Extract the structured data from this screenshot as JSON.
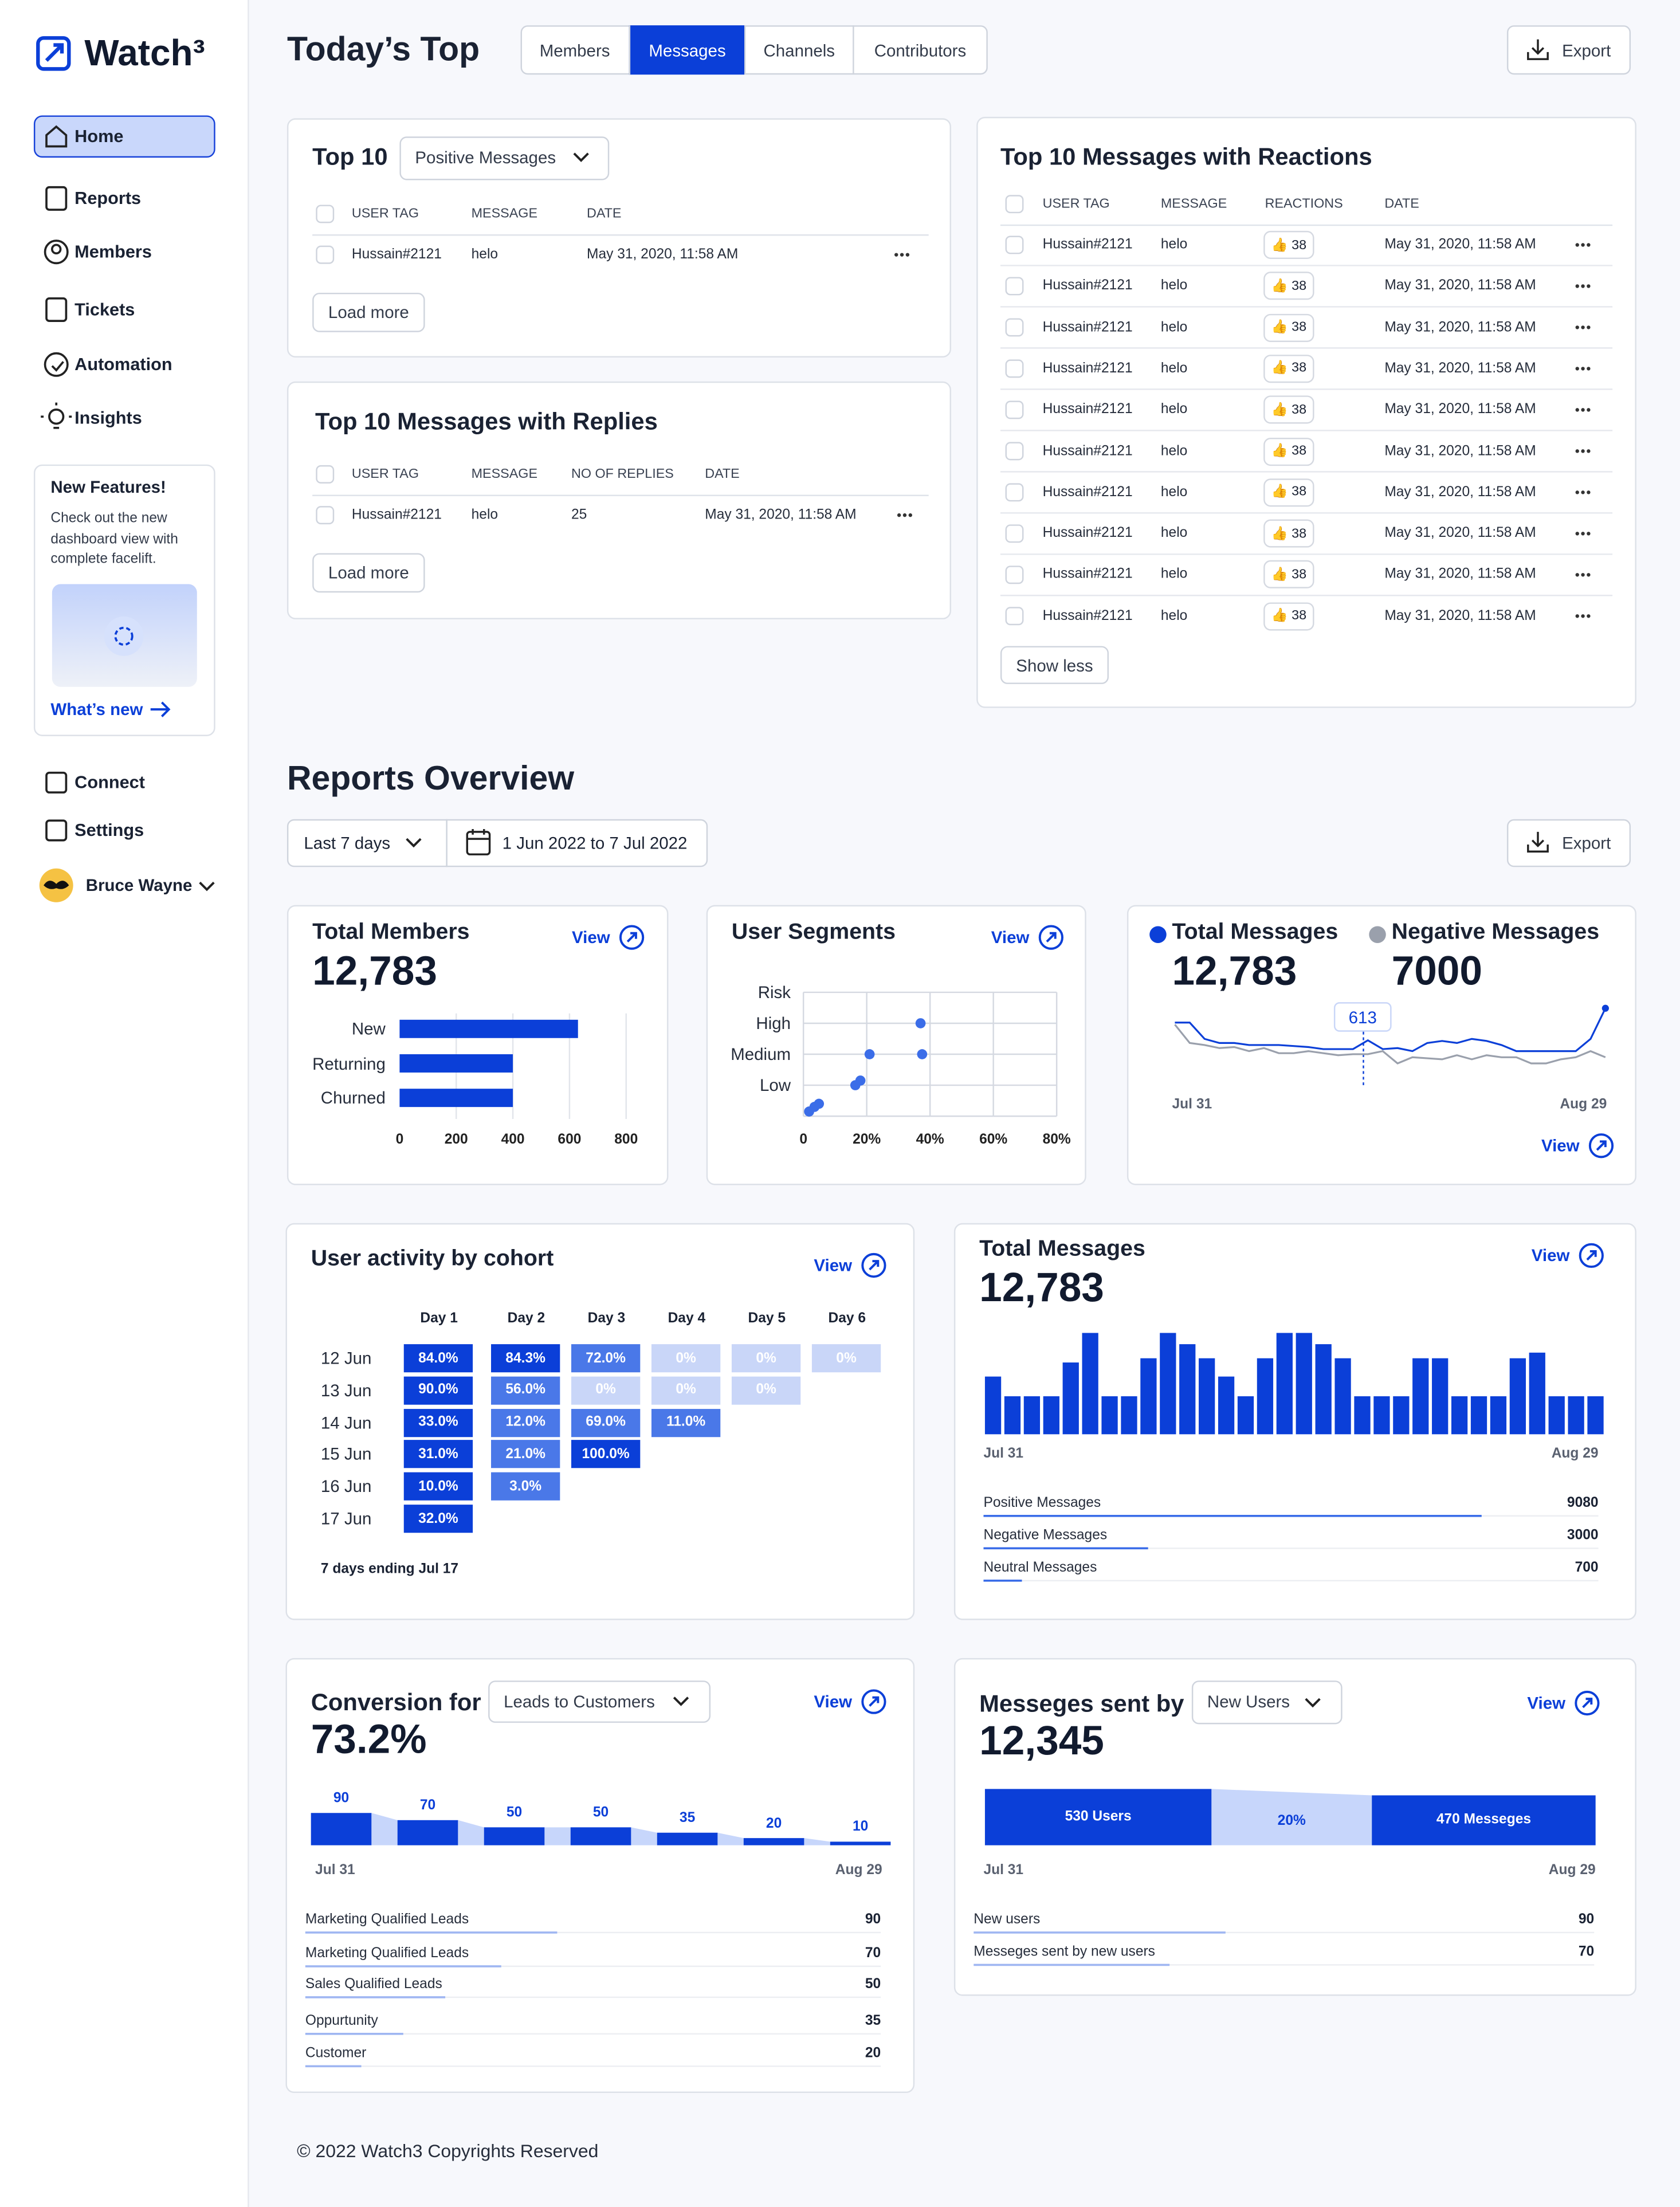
{
  "sidebar": {
    "brand": "Watch³",
    "nav": [
      "Home",
      "Reports",
      "Members",
      "Tickets",
      "Automation",
      "Insights"
    ],
    "promo": {
      "title": "New Features!",
      "text": "Check out the new dashboard view with complete facelift.",
      "link": "What’s new"
    },
    "nav2": [
      "Connect",
      "Settings"
    ],
    "user": "Bruce Wayne"
  },
  "header": {
    "title": "Today’s Top",
    "tabs": [
      "Members",
      "Messages",
      "Channels",
      "Contributors"
    ],
    "export": "Export"
  },
  "top10": {
    "title": "Top 10",
    "filter": "Positive Messages",
    "columns": [
      "USER TAG",
      "MESSAGE",
      "DATE"
    ],
    "rows": [
      [
        "Hussain#2121",
        "helo",
        "May 31, 2020, 11:58 AM"
      ]
    ],
    "button": "Load more"
  },
  "replies": {
    "title": "Top 10 Messages with Replies",
    "columns": [
      "USER TAG",
      "MESSAGE",
      "NO OF REPLIES",
      "DATE"
    ],
    "rows": [
      [
        "Hussain#2121",
        "helo",
        "25",
        "May 31, 2020, 11:58 AM"
      ]
    ],
    "button": "Load more"
  },
  "reactions": {
    "title": "Top 10 Messages with Reactions",
    "columns": [
      "USER TAG",
      "MESSAGE",
      "REACTIONS",
      "DATE"
    ],
    "rows": [
      [
        "Hussain#2121",
        "helo",
        "👍 38",
        "May 31, 2020, 11:58 AM"
      ],
      [
        "Hussain#2121",
        "helo",
        "👍 38",
        "May 31, 2020, 11:58 AM"
      ],
      [
        "Hussain#2121",
        "helo",
        "👍 38",
        "May 31, 2020, 11:58 AM"
      ],
      [
        "Hussain#2121",
        "helo",
        "👍 38",
        "May 31, 2020, 11:58 AM"
      ],
      [
        "Hussain#2121",
        "helo",
        "👍 38",
        "May 31, 2020, 11:58 AM"
      ],
      [
        "Hussain#2121",
        "helo",
        "👍 38",
        "May 31, 2020, 11:58 AM"
      ],
      [
        "Hussain#2121",
        "helo",
        "👍 38",
        "May 31, 2020, 11:58 AM"
      ],
      [
        "Hussain#2121",
        "helo",
        "👍 38",
        "May 31, 2020, 11:58 AM"
      ],
      [
        "Hussain#2121",
        "helo",
        "👍 38",
        "May 31, 2020, 11:58 AM"
      ],
      [
        "Hussain#2121",
        "helo",
        "👍 38",
        "May 31, 2020, 11:58 AM"
      ]
    ],
    "button": "Show less"
  },
  "reports": {
    "title": "Reports Overview",
    "range": "Last 7 days",
    "dates": "1 Jun 2022 to 7 Jul 2022",
    "export": "Export"
  },
  "total_members": {
    "title": "Total Members",
    "value": "12,783",
    "link": "View",
    "chart": {
      "type": "bar",
      "categories": [
        "New",
        "Returning",
        "Churned"
      ],
      "values": [
        630,
        400,
        400
      ],
      "xlim": [
        0,
        800
      ],
      "xticks": [
        0,
        200,
        400,
        600,
        800
      ],
      "color": "#0b3fd8",
      "grid": true
    }
  },
  "user_segments": {
    "title": "User Segments",
    "link": "View",
    "chart": {
      "type": "scatter",
      "x": [
        1.8,
        3.5,
        4.9,
        16.4,
        18,
        20.9,
        37,
        37.5
      ],
      "values": [
        0.15,
        0.3,
        0.4,
        1,
        1.15,
        2,
        3,
        2
      ],
      "xlim": [
        0,
        80
      ],
      "xticks": [
        0,
        {
          "value": 20,
          "label": "20%"
        },
        {
          "value": 40,
          "label": "40%"
        },
        {
          "value": 60,
          "label": "60%"
        },
        {
          "value": 80,
          "label": "80%"
        }
      ],
      "ylim": [
        0,
        4
      ],
      "yticks": [
        {
          "value": 1,
          "label": "Low"
        },
        {
          "value": 2,
          "label": "Medium"
        },
        {
          "value": 3,
          "label": "High"
        },
        {
          "value": 4,
          "label": "Risk"
        }
      ],
      "color": "#3b6de8",
      "grid": true
    }
  },
  "messages": {
    "totals": [
      "12,783",
      "7000"
    ],
    "annotation": "613",
    "link": "View",
    "chart": {
      "type": "line",
      "categories": [
        "Jul 31",
        null,
        null,
        null,
        null,
        null,
        null,
        null,
        null,
        null,
        null,
        null,
        null,
        null,
        null,
        null,
        null,
        null,
        null,
        null,
        null,
        null,
        null,
        null,
        null,
        null,
        null,
        null,
        null,
        "Aug 29"
      ],
      "series": [
        {
          "name": "Total Messages",
          "color": "#0b3fd8",
          "values": [
            700,
            700,
            620,
            600,
            600,
            590,
            590,
            590,
            585,
            580,
            570,
            570,
            570,
            613,
            570,
            575,
            560,
            600,
            610,
            600,
            620,
            610,
            590,
            560,
            560,
            560,
            560,
            560,
            620,
            770
          ]
        },
        {
          "name": "Negative Messages",
          "color": "#9aa0ac",
          "values": [
            690,
            600,
            590,
            575,
            580,
            560,
            575,
            550,
            550,
            560,
            550,
            540,
            545,
            545,
            560,
            500,
            530,
            525,
            520,
            540,
            520,
            540,
            530,
            530,
            500,
            500,
            520,
            530,
            560,
            530
          ]
        }
      ],
      "ylim": [
        400,
        800
      ]
    }
  },
  "cohort": {
    "title": "User activity by cohort",
    "link": "View",
    "columns": [
      "Day 1",
      "Day 2",
      "Day 3",
      "Day 4",
      "Day 5",
      "Day 6"
    ],
    "rows": [
      {
        "label": "12 Jun",
        "values": [
          "84.0%",
          "84.3%",
          "72.0%",
          "0%",
          "0%",
          "0%"
        ]
      },
      {
        "label": "13 Jun",
        "values": [
          "90.0%",
          "56.0%",
          "0%",
          "0%",
          "0%"
        ]
      },
      {
        "label": "14 Jun",
        "values": [
          "33.0%",
          "12.0%",
          "69.0%",
          "11.0%"
        ]
      },
      {
        "label": "15 Jun",
        "values": [
          "31.0%",
          "21.0%",
          "100.0%"
        ]
      },
      {
        "label": "16 Jun",
        "values": [
          "10.0%",
          "3.0%"
        ]
      },
      {
        "label": "17 Jun",
        "values": [
          "32.0%"
        ]
      }
    ],
    "footnote": "7 days ending Jul 17"
  },
  "total_messages": {
    "title": "Total Messages",
    "value": "12,783",
    "link": "View",
    "chart": {
      "type": "bar",
      "categories": [
        "Jul 31",
        null,
        null,
        null,
        null,
        null,
        null,
        null,
        null,
        null,
        null,
        null,
        null,
        null,
        null,
        null,
        null,
        null,
        null,
        null,
        null,
        null,
        null,
        null,
        null,
        null,
        null,
        null,
        null,
        null,
        null,
        "Aug 29"
      ],
      "values": [
        41,
        27,
        27,
        27,
        51,
        72,
        27,
        27,
        54,
        72,
        64,
        54,
        41,
        27,
        54,
        72,
        72,
        64,
        54,
        27,
        27,
        27,
        54,
        54,
        27,
        27,
        27,
        54,
        58,
        27,
        27,
        27
      ],
      "ylim": [
        0,
        80
      ],
      "color": "#0b3fd8"
    },
    "breakdown": {
      "categories": [
        "Positive Messages",
        "Negative Messages",
        "Neutral Messages"
      ],
      "values": [
        9080,
        3000,
        700
      ],
      "color": "#3b6de8"
    }
  },
  "conversion": {
    "title": "Conversion for",
    "filter": "Leads to Customers",
    "value": "73.2%",
    "link": "View",
    "chart": {
      "type": "bar",
      "categories": [
        "Jul 31",
        null,
        null,
        null,
        null,
        null,
        "Aug 29"
      ],
      "values": [
        90,
        70,
        50,
        50,
        35,
        20,
        10
      ],
      "ylim": [
        0,
        100
      ],
      "color": "#0b3fd8"
    },
    "breakdown": {
      "categories": [
        "Marketing Qualified Leads",
        "Marketing Qualified Leads",
        "Sales Qualified Leads",
        "Oppurtunity",
        "Customer"
      ],
      "values": [
        90,
        70,
        50,
        35,
        20
      ],
      "color": "#9fb6f2"
    }
  },
  "messages_sent": {
    "title": "Messeges sent by",
    "filter": "New Users",
    "value": "12,345",
    "link": "View",
    "chart": {
      "type": "funnel",
      "categories": [
        "Jul 31",
        "Aug 29"
      ],
      "values": [
        530,
        470
      ],
      "value_labels": [
        "530 Users",
        "470 Messeges"
      ],
      "annotation": "20%",
      "color": "#0b3fd8"
    },
    "breakdown": {
      "categories": [
        "New users",
        "Messeges sent by new users"
      ],
      "values": [
        90,
        70
      ],
      "color": "#9fb6f2"
    }
  },
  "footer": "© 2022 Watch3 Copyrights Reserved"
}
